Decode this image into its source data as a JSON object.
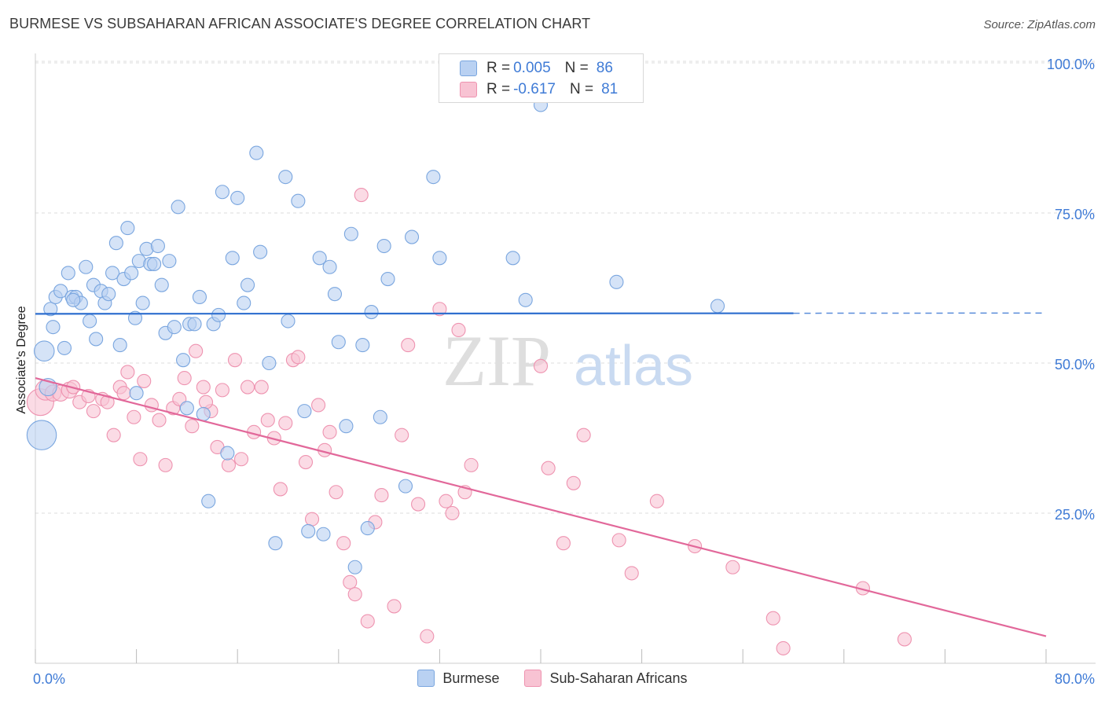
{
  "header": {
    "title": "BURMESE VS SUBSAHARAN AFRICAN ASSOCIATE'S DEGREE CORRELATION CHART",
    "source": "Source: ZipAtlas.com"
  },
  "watermark": {
    "zip": "ZIP",
    "atlas": "atlas"
  },
  "colors": {
    "blue_fill": "#b9d1f2",
    "blue_stroke": "#7aa6df",
    "blue_line": "#2f6fcf",
    "pink_fill": "#f8c3d3",
    "pink_stroke": "#ee93b0",
    "pink_line": "#e2689a",
    "tick_label": "#3f7bd6",
    "grid": "#dddddd"
  },
  "legend_top": [
    {
      "r_label": "R =",
      "r_value": "0.005",
      "n_label": "N =",
      "n_value": "86",
      "swatch": "#b9d1f2"
    },
    {
      "r_label": "R =",
      "r_value": "-0.617",
      "n_label": "N =",
      "n_value": "81",
      "swatch": "#f8c3d3"
    }
  ],
  "legend_bottom": [
    {
      "label": "Burmese",
      "swatch": "#b9d1f2"
    },
    {
      "label": "Sub-Saharan Africans",
      "swatch": "#f8c3d3"
    }
  ],
  "chart_data": {
    "type": "scatter",
    "title": "BURMESE VS SUBSAHARAN AFRICAN ASSOCIATE'S DEGREE CORRELATION CHART",
    "xlabel": "",
    "ylabel": "Associate's Degree",
    "xlim": [
      0,
      80
    ],
    "ylim": [
      0,
      100
    ],
    "x_tick_labels": [
      "0.0%",
      "80.0%"
    ],
    "y_ticks": [
      25,
      50,
      75,
      100
    ],
    "y_tick_labels": [
      "25.0%",
      "50.0%",
      "75.0%",
      "100.0%"
    ],
    "grid": true,
    "legend_position": "top-center",
    "series": [
      {
        "name": "Burmese",
        "r": 0.005,
        "n": 86,
        "trend": {
          "x": [
            0,
            60
          ],
          "y": [
            58.2,
            58.3
          ],
          "dashed_extension_to_x": 80
        },
        "points": [
          [
            0.5,
            38.0,
            2.2
          ],
          [
            0.7,
            52.0,
            1.5
          ],
          [
            1.0,
            46.0,
            1.3
          ],
          [
            1.2,
            59.0,
            1
          ],
          [
            1.4,
            56.0,
            1
          ],
          [
            1.6,
            61.0,
            1
          ],
          [
            2.0,
            62.0,
            1
          ],
          [
            2.3,
            52.5,
            1
          ],
          [
            2.6,
            65.0,
            1
          ],
          [
            2.9,
            61.0,
            1
          ],
          [
            3.2,
            61.0,
            1
          ],
          [
            3.6,
            60.0,
            1
          ],
          [
            4.0,
            66.0,
            1
          ],
          [
            4.3,
            57.0,
            1
          ],
          [
            4.6,
            63.0,
            1
          ],
          [
            4.8,
            54.0,
            1
          ],
          [
            5.2,
            62.0,
            1
          ],
          [
            5.5,
            60.0,
            1
          ],
          [
            5.8,
            61.5,
            1
          ],
          [
            6.1,
            65.0,
            1
          ],
          [
            6.4,
            70.0,
            1
          ],
          [
            6.7,
            53.0,
            1
          ],
          [
            7.0,
            64.0,
            1
          ],
          [
            7.3,
            72.5,
            1
          ],
          [
            7.6,
            65.0,
            1
          ],
          [
            7.9,
            57.5,
            1
          ],
          [
            8.2,
            67.0,
            1
          ],
          [
            8.5,
            60.0,
            1
          ],
          [
            8.8,
            69.0,
            1
          ],
          [
            9.1,
            66.5,
            1
          ],
          [
            9.4,
            66.5,
            1
          ],
          [
            9.7,
            69.5,
            1
          ],
          [
            10.0,
            63.0,
            1
          ],
          [
            10.3,
            55.0,
            1
          ],
          [
            10.6,
            67.0,
            1
          ],
          [
            11.0,
            56.0,
            1
          ],
          [
            11.3,
            76.0,
            1
          ],
          [
            11.7,
            50.5,
            1
          ],
          [
            12.2,
            56.5,
            1
          ],
          [
            12.6,
            56.5,
            1
          ],
          [
            13.0,
            61.0,
            1
          ],
          [
            13.3,
            41.5,
            1
          ],
          [
            13.7,
            27.0,
            1
          ],
          [
            14.1,
            56.5,
            1
          ],
          [
            14.5,
            58.0,
            1
          ],
          [
            14.8,
            78.5,
            1
          ],
          [
            15.2,
            35.0,
            1
          ],
          [
            15.6,
            67.5,
            1
          ],
          [
            16.0,
            77.5,
            1
          ],
          [
            16.5,
            60.0,
            1
          ],
          [
            16.8,
            63.0,
            1
          ],
          [
            17.5,
            85.0,
            1
          ],
          [
            17.8,
            68.5,
            1
          ],
          [
            18.5,
            50.0,
            1
          ],
          [
            19.0,
            20.0,
            1
          ],
          [
            19.8,
            81.0,
            1
          ],
          [
            20.8,
            77.0,
            1
          ],
          [
            21.3,
            42.0,
            1
          ],
          [
            21.6,
            22.0,
            1
          ],
          [
            22.5,
            67.5,
            1
          ],
          [
            22.8,
            21.5,
            1
          ],
          [
            23.3,
            66.0,
            1
          ],
          [
            23.7,
            61.5,
            1
          ],
          [
            24.0,
            53.5,
            1
          ],
          [
            24.6,
            39.5,
            1
          ],
          [
            25.0,
            71.5,
            1
          ],
          [
            25.3,
            16.0,
            1
          ],
          [
            25.9,
            53.0,
            1
          ],
          [
            26.3,
            22.5,
            1
          ],
          [
            26.6,
            58.5,
            1
          ],
          [
            27.3,
            41.0,
            1
          ],
          [
            27.6,
            69.5,
            1
          ],
          [
            27.9,
            64.0,
            1
          ],
          [
            29.3,
            29.5,
            1
          ],
          [
            29.8,
            71.0,
            1
          ],
          [
            31.5,
            81.0,
            1
          ],
          [
            32.0,
            67.5,
            1
          ],
          [
            37.8,
            67.5,
            1
          ],
          [
            38.8,
            60.5,
            1
          ],
          [
            40.0,
            93.0,
            1
          ],
          [
            46.0,
            63.5,
            1
          ],
          [
            54.0,
            59.5,
            1
          ],
          [
            20.0,
            57.0,
            1
          ],
          [
            8.0,
            45.0,
            1
          ],
          [
            3.0,
            60.5,
            1
          ],
          [
            12.0,
            42.5,
            1
          ]
        ]
      },
      {
        "name": "Sub-Saharan Africans",
        "r": -0.617,
        "n": 81,
        "trend": {
          "x": [
            0,
            80
          ],
          "y": [
            47.5,
            4.5
          ]
        },
        "points": [
          [
            0.4,
            43.5,
            2.0
          ],
          [
            0.8,
            45.5,
            1.5
          ],
          [
            1.4,
            45.0,
            1.2
          ],
          [
            2.0,
            45.0,
            1.2
          ],
          [
            2.7,
            45.5,
            1.2
          ],
          [
            3.5,
            43.5,
            1
          ],
          [
            4.2,
            44.5,
            1
          ],
          [
            4.6,
            42.0,
            1
          ],
          [
            5.3,
            44.0,
            1
          ],
          [
            5.7,
            43.5,
            1
          ],
          [
            6.2,
            38.0,
            1
          ],
          [
            6.7,
            46.0,
            1
          ],
          [
            7.3,
            48.5,
            1
          ],
          [
            7.8,
            41.0,
            1
          ],
          [
            8.3,
            34.0,
            1
          ],
          [
            8.6,
            47.0,
            1
          ],
          [
            9.2,
            43.0,
            1
          ],
          [
            9.8,
            40.5,
            1
          ],
          [
            10.3,
            33.0,
            1
          ],
          [
            10.9,
            42.5,
            1
          ],
          [
            11.4,
            44.0,
            1
          ],
          [
            11.8,
            47.5,
            1
          ],
          [
            12.4,
            39.5,
            1
          ],
          [
            12.7,
            52.0,
            1
          ],
          [
            13.3,
            46.0,
            1
          ],
          [
            13.9,
            42.0,
            1
          ],
          [
            14.4,
            36.0,
            1
          ],
          [
            14.8,
            45.5,
            1
          ],
          [
            15.3,
            33.0,
            1
          ],
          [
            15.8,
            50.5,
            1
          ],
          [
            16.3,
            34.0,
            1
          ],
          [
            16.8,
            46.0,
            1
          ],
          [
            17.3,
            38.5,
            1
          ],
          [
            17.9,
            46.0,
            1
          ],
          [
            18.4,
            40.5,
            1
          ],
          [
            18.9,
            37.5,
            1
          ],
          [
            19.4,
            29.0,
            1
          ],
          [
            19.8,
            40.0,
            1
          ],
          [
            20.4,
            50.5,
            1
          ],
          [
            20.8,
            51.0,
            1
          ],
          [
            21.4,
            33.5,
            1
          ],
          [
            21.9,
            24.0,
            1
          ],
          [
            22.4,
            43.0,
            1
          ],
          [
            22.9,
            35.5,
            1
          ],
          [
            23.3,
            38.5,
            1
          ],
          [
            23.8,
            28.5,
            1
          ],
          [
            24.4,
            20.0,
            1
          ],
          [
            24.9,
            13.5,
            1
          ],
          [
            25.3,
            11.5,
            1
          ],
          [
            25.8,
            78.0,
            1
          ],
          [
            26.3,
            7.0,
            1
          ],
          [
            26.9,
            23.5,
            1
          ],
          [
            27.4,
            28.0,
            1
          ],
          [
            28.4,
            9.5,
            1
          ],
          [
            29.0,
            38.0,
            1
          ],
          [
            29.5,
            53.0,
            1
          ],
          [
            30.3,
            26.5,
            1
          ],
          [
            31.0,
            4.5,
            1
          ],
          [
            32.0,
            59.0,
            1
          ],
          [
            32.5,
            27.0,
            1
          ],
          [
            33.0,
            25.0,
            1
          ],
          [
            33.5,
            55.5,
            1
          ],
          [
            34.0,
            28.5,
            1
          ],
          [
            34.5,
            33.0,
            1
          ],
          [
            40.0,
            49.5,
            1
          ],
          [
            40.6,
            32.5,
            1
          ],
          [
            41.8,
            20.0,
            1
          ],
          [
            42.6,
            30.0,
            1
          ],
          [
            43.4,
            38.0,
            1
          ],
          [
            46.2,
            20.5,
            1
          ],
          [
            47.2,
            15.0,
            1
          ],
          [
            49.2,
            27.0,
            1
          ],
          [
            52.2,
            19.5,
            1
          ],
          [
            55.2,
            16.0,
            1
          ],
          [
            58.4,
            7.5,
            1
          ],
          [
            59.2,
            2.5,
            1
          ],
          [
            65.5,
            12.5,
            1
          ],
          [
            68.8,
            4.0,
            1
          ],
          [
            7.0,
            45.0,
            1
          ],
          [
            3.0,
            46.0,
            1
          ],
          [
            13.5,
            43.5,
            1
          ]
        ]
      }
    ]
  }
}
